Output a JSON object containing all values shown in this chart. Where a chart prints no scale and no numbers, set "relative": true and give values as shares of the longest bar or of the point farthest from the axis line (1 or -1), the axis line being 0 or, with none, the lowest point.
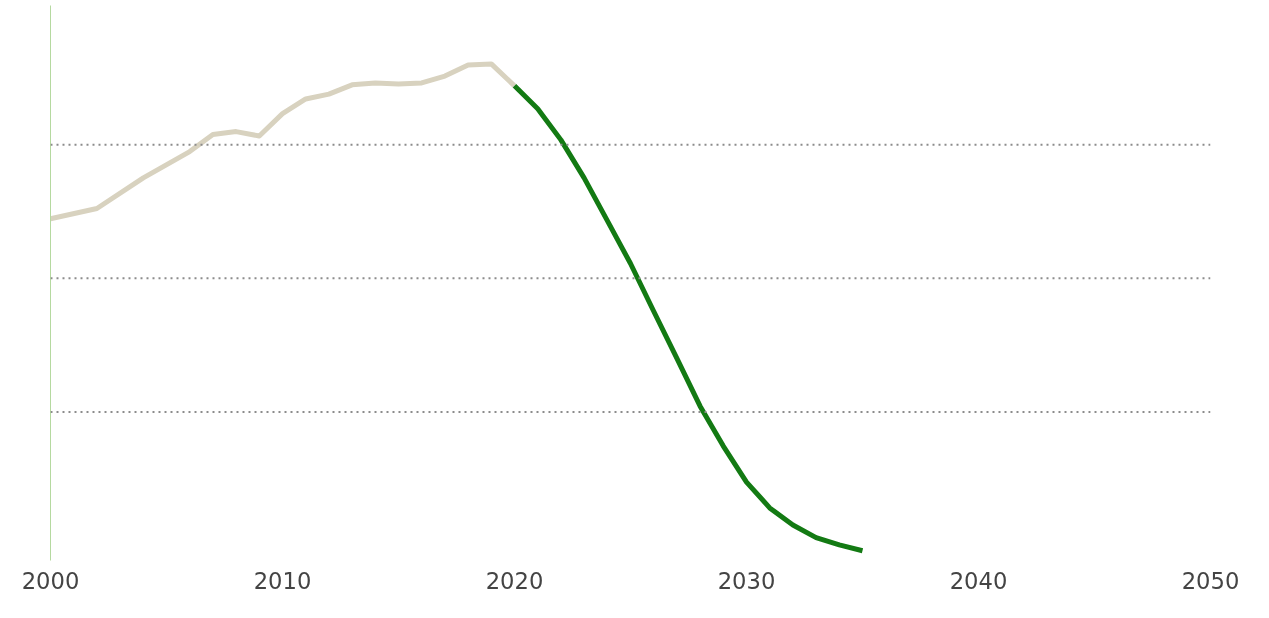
{
  "chart_data": {
    "type": "line",
    "relative": true,
    "x": [
      2000,
      2002,
      2004,
      2006,
      2007,
      2008,
      2009,
      2010,
      2011,
      2012,
      2013,
      2014,
      2015,
      2016,
      2017,
      2018,
      2019,
      2020
    ],
    "series": [
      {
        "color": "#d8d2bf",
        "values": [
          0.682,
          0.703,
          0.766,
          0.82,
          0.855,
          0.861,
          0.852,
          0.898,
          0.928,
          0.938,
          0.957,
          0.961,
          0.959,
          0.961,
          0.975,
          0.998,
          1.0,
          0.955
        ]
      },
      {
        "color": "#137a13",
        "x": [
          2020,
          2021,
          2022,
          2023,
          2024,
          2025,
          2026,
          2027,
          2028,
          2029,
          2030,
          2031,
          2032,
          2033,
          2034,
          2035
        ],
        "values": [
          0.955,
          0.908,
          0.844,
          0.766,
          0.678,
          0.59,
          0.492,
          0.395,
          0.297,
          0.215,
          0.141,
          0.088,
          0.053,
          0.027,
          0.012,
          0.0
        ]
      }
    ],
    "xlim": [
      2000,
      2050
    ],
    "xticks": [
      2000,
      2010,
      2020,
      2030,
      2040,
      2050
    ],
    "grid": false,
    "marker": "none",
    "line_style": "solid",
    "ref_lines": [
      {
        "axis": "y",
        "value": 0.834,
        "color": "#8c8c8c",
        "line_style": "dotted"
      },
      {
        "axis": "y",
        "value": 0.56,
        "color": "#8c8c8c",
        "line_style": "dotted"
      },
      {
        "axis": "y",
        "value": 0.285,
        "color": "#8c8c8c",
        "line_style": "dotted"
      }
    ]
  }
}
